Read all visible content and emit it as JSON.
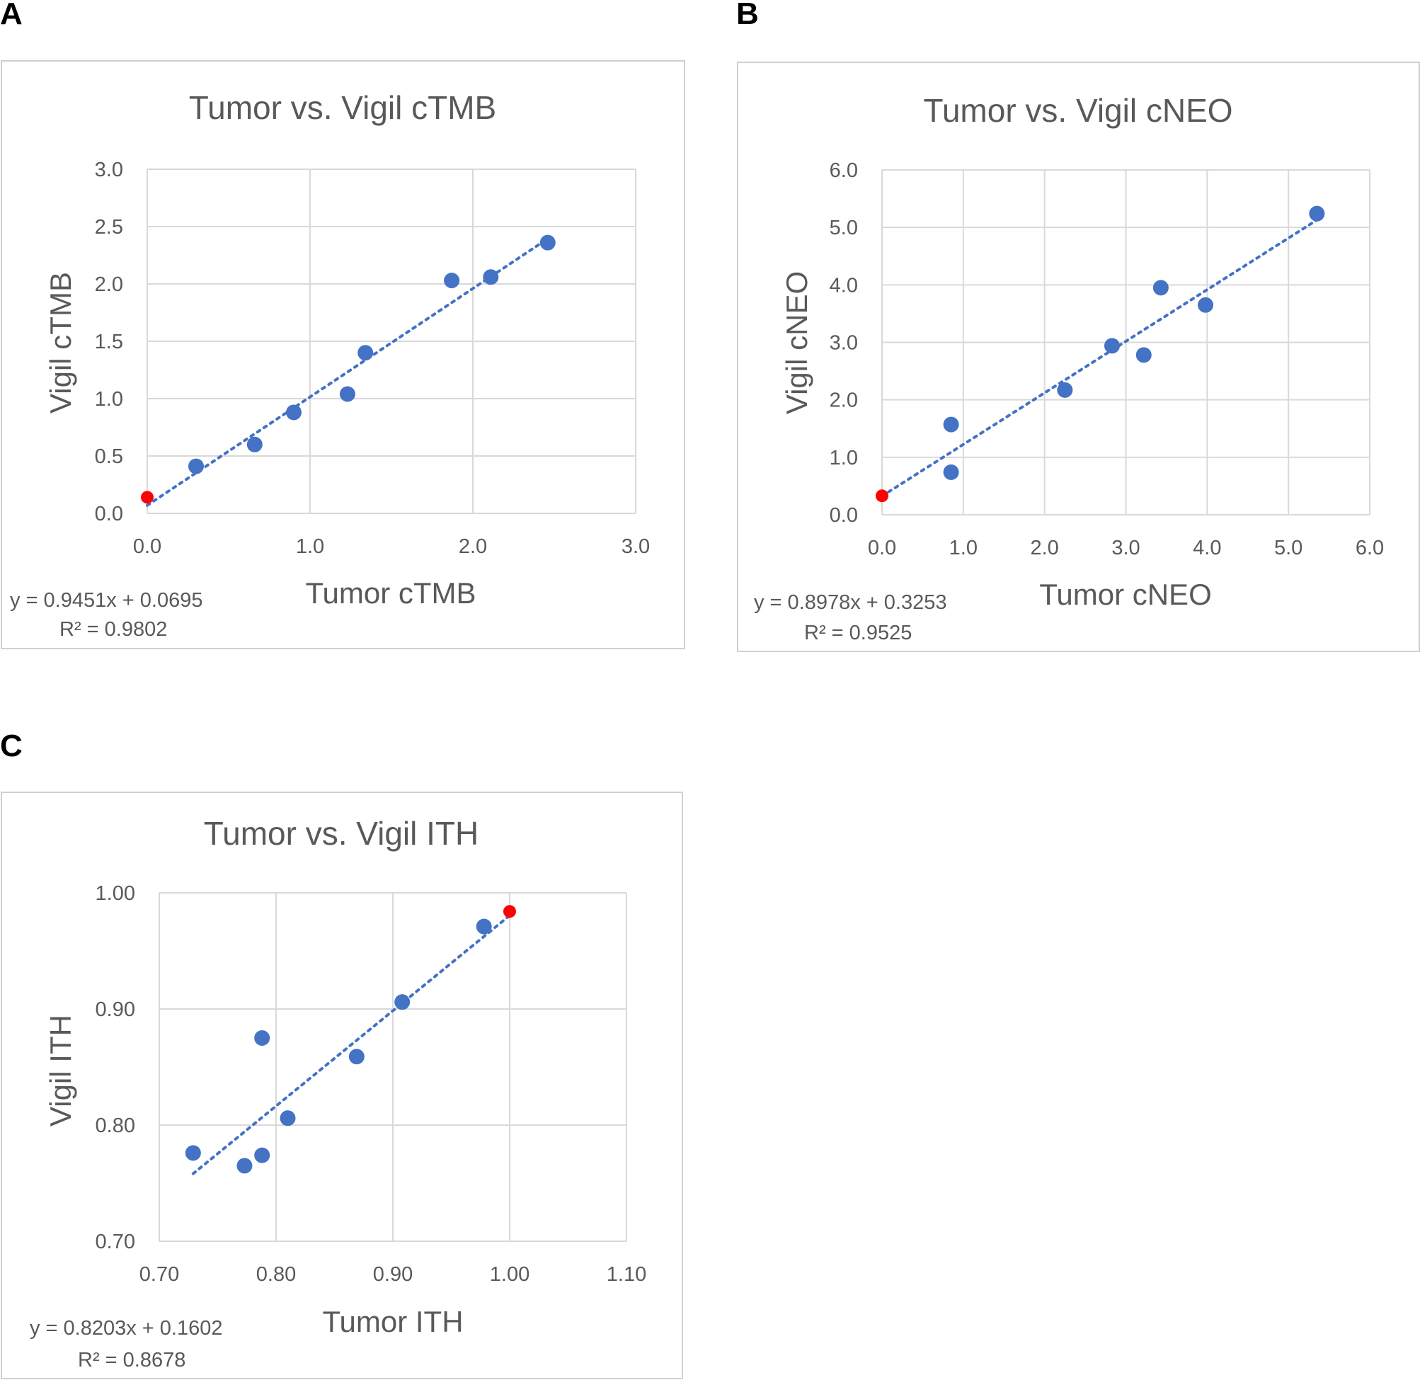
{
  "panels": [
    {
      "letter": "A"
    },
    {
      "letter": "B"
    },
    {
      "letter": "C"
    }
  ],
  "colors": {
    "points": "#4472c4",
    "highlight": "#ff0000",
    "trendline": "#4472c4",
    "grid": "#d9d9d9",
    "text": "#595959"
  },
  "chart_data": [
    {
      "type": "scatter",
      "title": "Tumor vs. Vigil cTMB",
      "xlabel": "Tumor cTMB",
      "ylabel": "Vigil cTMB",
      "xlim": [
        0,
        3
      ],
      "ylim": [
        0,
        3
      ],
      "xticks": [
        0,
        1,
        2,
        3
      ],
      "xtick_labels": [
        "0.0",
        "1.0",
        "2.0",
        "3.0"
      ],
      "yticks": [
        0,
        0.5,
        1,
        1.5,
        2,
        2.5,
        3
      ],
      "ytick_labels": [
        "0.0",
        "0.5",
        "1.0",
        "1.5",
        "2.0",
        "2.5",
        "3.0"
      ],
      "grid": true,
      "series": [
        {
          "name": "samples",
          "color": "#4472c4",
          "x": [
            0.3,
            0.66,
            0.9,
            1.23,
            1.34,
            1.87,
            2.11,
            2.46
          ],
          "y": [
            0.41,
            0.6,
            0.88,
            1.04,
            1.4,
            2.03,
            2.06,
            2.36
          ]
        },
        {
          "name": "highlight",
          "color": "#ff0000",
          "x": [
            0.0
          ],
          "y": [
            0.14
          ]
        }
      ],
      "trendline": {
        "slope": 0.9451,
        "intercept": 0.0695,
        "x_range": [
          0.0,
          2.46
        ]
      },
      "equation": "y = 0.9451x + 0.0695",
      "r2": "R² = 0.9802"
    },
    {
      "type": "scatter",
      "title": "Tumor vs. Vigil cNEO",
      "xlabel": "Tumor cNEO",
      "ylabel": "Vigil cNEO",
      "xlim": [
        0,
        6
      ],
      "ylim": [
        0,
        6
      ],
      "xticks": [
        0,
        1,
        2,
        3,
        4,
        5,
        6
      ],
      "xtick_labels": [
        "0.0",
        "1.0",
        "2.0",
        "3.0",
        "4.0",
        "5.0",
        "6.0"
      ],
      "yticks": [
        0,
        1,
        2,
        3,
        4,
        5,
        6
      ],
      "ytick_labels": [
        "0.0",
        "1.0",
        "2.0",
        "3.0",
        "4.0",
        "5.0",
        "6.0"
      ],
      "grid": true,
      "series": [
        {
          "name": "samples",
          "color": "#4472c4",
          "x": [
            0.85,
            0.85,
            2.25,
            2.83,
            3.22,
            3.43,
            3.98,
            5.35
          ],
          "y": [
            1.57,
            0.74,
            2.17,
            2.94,
            2.78,
            3.95,
            3.65,
            5.24
          ]
        },
        {
          "name": "highlight",
          "color": "#ff0000",
          "x": [
            0.0
          ],
          "y": [
            0.33
          ]
        }
      ],
      "trendline": {
        "slope": 0.8978,
        "intercept": 0.3253,
        "x_range": [
          0.0,
          5.35
        ]
      },
      "equation": "y = 0.8978x + 0.3253",
      "r2": "R² = 0.9525"
    },
    {
      "type": "scatter",
      "title": "Tumor vs. Vigil ITH",
      "xlabel": "Tumor ITH",
      "ylabel": "Vigil ITH",
      "xlim": [
        0.7,
        1.1
      ],
      "ylim": [
        0.7,
        1.0
      ],
      "xticks": [
        0.7,
        0.8,
        0.9,
        1.0,
        1.1
      ],
      "xtick_labels": [
        "0.70",
        "0.80",
        "0.90",
        "1.00",
        "1.10"
      ],
      "yticks": [
        0.7,
        0.8,
        0.9,
        1.0
      ],
      "ytick_labels": [
        "0.70",
        "0.80",
        "0.90",
        "1.00"
      ],
      "grid": true,
      "series": [
        {
          "name": "samples",
          "color": "#4472c4",
          "x": [
            0.729,
            0.773,
            0.788,
            0.788,
            0.81,
            0.869,
            0.908,
            0.978
          ],
          "y": [
            0.776,
            0.765,
            0.774,
            0.875,
            0.806,
            0.859,
            0.906,
            0.971
          ]
        },
        {
          "name": "highlight",
          "color": "#ff0000",
          "x": [
            1.0
          ],
          "y": [
            0.984
          ]
        }
      ],
      "trendline": {
        "slope": 0.8203,
        "intercept": 0.1602,
        "x_range": [
          0.729,
          1.0
        ]
      },
      "equation": "y = 0.8203x + 0.1602",
      "r2": "R² = 0.8678"
    }
  ]
}
